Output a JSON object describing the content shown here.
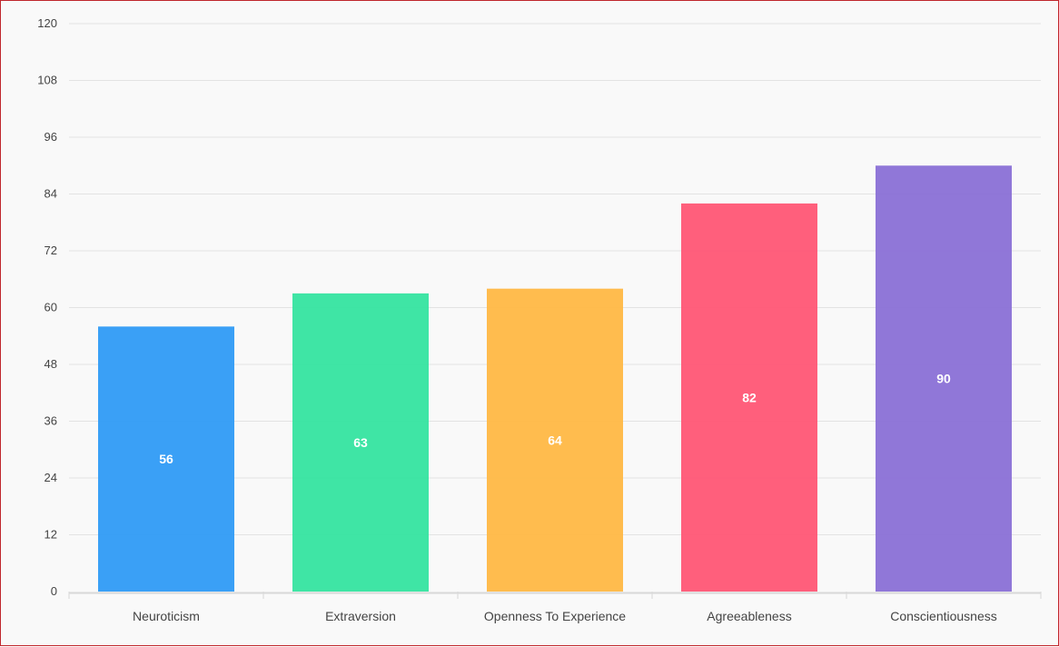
{
  "chart_data": {
    "type": "bar",
    "title": "",
    "xlabel": "",
    "ylabel": "",
    "categories": [
      "Neuroticism",
      "Extraversion",
      "Openness To Experience",
      "Agreeableness",
      "Conscientiousness"
    ],
    "values": [
      56,
      63,
      64,
      82,
      90
    ],
    "data_labels": [
      "56",
      "63",
      "64",
      "82",
      "90"
    ],
    "colors": [
      "#2f9bf6",
      "#35e4a0",
      "#ffb845",
      "#ff5675",
      "#8a70d6"
    ],
    "ylim": [
      0,
      120
    ],
    "yticks": [
      "0",
      "12",
      "24",
      "36",
      "48",
      "60",
      "72",
      "84",
      "96",
      "108",
      "120"
    ],
    "grid": true,
    "legend": "none"
  }
}
